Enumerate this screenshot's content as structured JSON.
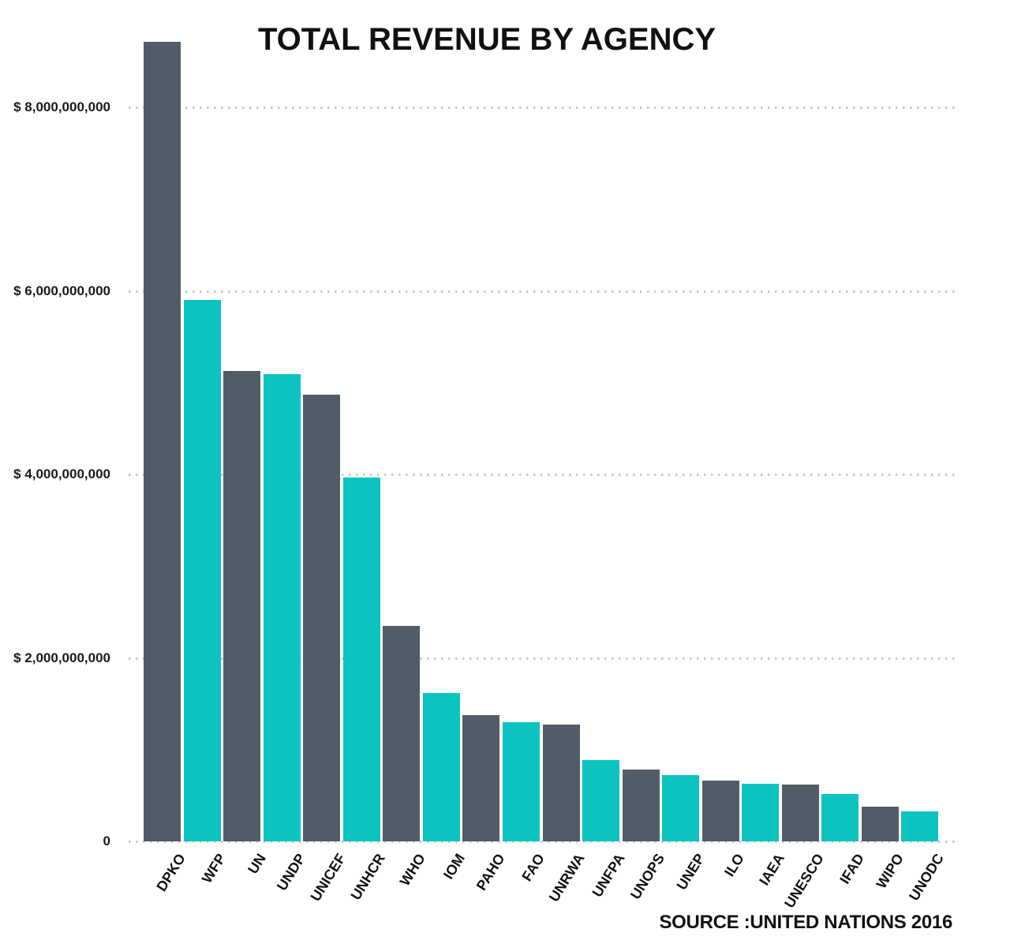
{
  "title": "TOTAL REVENUE BY AGENCY",
  "source": "SOURCE :UNITED NATIONS 2016",
  "colors": {
    "bar_dark": "#525c68",
    "bar_teal": "#0bc4bf",
    "gridline": "#c9c9c9",
    "text": "#111111"
  },
  "y_axis": {
    "ticks": [
      {
        "label": "$ 8,000,000,000",
        "value": 8000000000
      },
      {
        "label": "$ 6,000,000,000",
        "value": 6000000000
      },
      {
        "label": "$ 4,000,000,000",
        "value": 4000000000
      },
      {
        "label": "$ 2,000,000,000",
        "value": 2000000000
      },
      {
        "label": "0",
        "value": 0
      }
    ]
  },
  "chart_data": {
    "type": "bar",
    "title": "TOTAL REVENUE BY AGENCY",
    "xlabel": "",
    "ylabel": "",
    "ylim": [
      0,
      8800000000
    ],
    "grid": "horizontal-dotted",
    "legend": "none",
    "bar_color_pattern": [
      "bar_dark",
      "bar_teal"
    ],
    "categories": [
      "DPKO",
      "WFP",
      "UN",
      "UNDP",
      "UNICEF",
      "UNHCR",
      "WHO",
      "IOM",
      "PAHO",
      "FAO",
      "UNRWA",
      "UNFPA",
      "UNOPS",
      "UNEP",
      "ILO",
      "IAEA",
      "UNESCO",
      "IFAD",
      "WIPO",
      "UNODC"
    ],
    "values": [
      8710000000,
      5900000000,
      5130000000,
      5090000000,
      4870000000,
      3970000000,
      2350000000,
      1620000000,
      1380000000,
      1300000000,
      1270000000,
      890000000,
      780000000,
      720000000,
      660000000,
      630000000,
      620000000,
      520000000,
      380000000,
      330000000
    ],
    "source": "SOURCE :UNITED NATIONS 2016"
  }
}
